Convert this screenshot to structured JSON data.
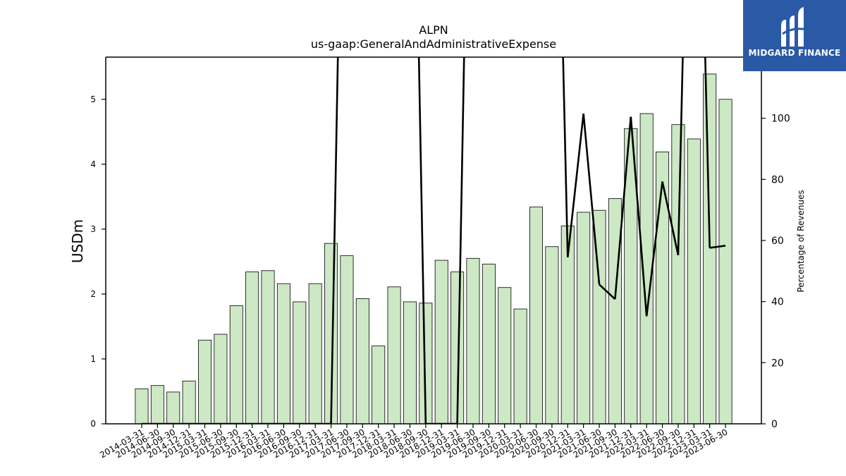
{
  "logo": {
    "text": "MIDGARD FINANCE"
  },
  "chart_data": {
    "type": "bar",
    "title": "ALPN",
    "subtitle": "us-gaap:GeneralAndAdministrativeExpense",
    "ylabel": "USDm",
    "y2label": "Percentage of Revenues",
    "ylim": [
      0,
      5.65
    ],
    "y2lim": [
      0,
      120
    ],
    "yticks": [
      0,
      1,
      2,
      3,
      4,
      5
    ],
    "y2ticks": [
      0,
      20,
      40,
      60,
      80,
      100
    ],
    "grid": false,
    "categories": [
      "2014-03-31",
      "2014-06-30",
      "2014-09-30",
      "2014-12-31",
      "2015-03-31",
      "2015-06-30",
      "2015-09-30",
      "2015-12-31",
      "2016-03-31",
      "2016-06-30",
      "2016-09-30",
      "2016-12-31",
      "2017-03-31",
      "2017-06-30",
      "2017-09-30",
      "2017-12-31",
      "2018-03-31",
      "2018-06-30",
      "2018-09-30",
      "2018-12-31",
      "2019-03-31",
      "2019-06-30",
      "2019-09-30",
      "2019-12-31",
      "2020-03-31",
      "2020-06-30",
      "2020-09-30",
      "2020-12-31",
      "2021-03-31",
      "2021-06-30",
      "2021-09-30",
      "2021-12-31",
      "2022-03-31",
      "2022-06-30",
      "2022-09-30",
      "2022-12-31",
      "2023-03-31",
      "2023-06-30"
    ],
    "series": [
      {
        "type": "bar",
        "axis": "left",
        "color": "#cce8c4",
        "values": [
          0.54,
          0.59,
          0.49,
          0.66,
          1.29,
          1.38,
          1.82,
          2.34,
          2.36,
          2.16,
          1.88,
          2.16,
          2.78,
          2.59,
          1.93,
          1.2,
          2.11,
          1.88,
          1.86,
          2.52,
          2.34,
          2.55,
          2.46,
          2.1,
          1.77,
          3.34,
          2.73,
          3.05,
          3.26,
          3.29,
          3.47,
          4.55,
          4.78,
          4.19,
          4.61,
          4.39,
          5.39,
          5.0
        ]
      },
      {
        "type": "line",
        "axis": "right",
        "color": "#000000",
        "values": [
          0,
          0,
          0,
          0,
          0,
          0,
          0,
          0,
          0,
          0,
          0,
          0,
          0,
          null,
          null,
          null,
          null,
          null,
          0,
          0,
          0,
          null,
          null,
          null,
          null,
          null,
          null,
          54.5,
          101.5,
          45.6,
          40.8,
          100.5,
          35.2,
          79.3,
          55.2,
          null,
          57.6,
          58.3
        ]
      }
    ]
  }
}
